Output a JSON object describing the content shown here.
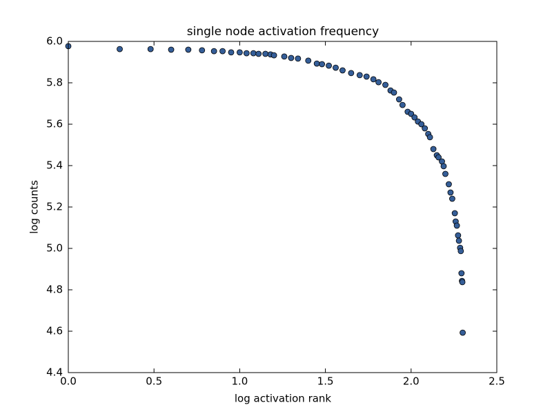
{
  "chart_data": {
    "type": "scatter",
    "title": "single node activation frequency",
    "xlabel": "log activation rank",
    "ylabel": "log counts",
    "color": "#355e98",
    "xlim": [
      0,
      2.5
    ],
    "ylim": [
      4.4,
      6.0
    ],
    "xticks": [
      {
        "value": 0,
        "label": "0.0"
      },
      0.5,
      {
        "value": 1,
        "label": "1.0"
      },
      1.5,
      {
        "value": 2,
        "label": "2.0"
      },
      2.5
    ],
    "yticks": [
      4.4,
      4.6,
      4.8,
      {
        "value": 5,
        "label": "5.0"
      },
      5.2,
      5.4,
      5.6,
      5.8,
      {
        "value": 6,
        "label": "6.0"
      }
    ],
    "x": [
      0,
      0.3,
      0.48,
      0.6,
      0.7,
      0.78,
      0.85,
      0.9,
      0.95,
      1.0,
      1.04,
      1.08,
      1.11,
      1.15,
      1.18,
      1.2,
      1.26,
      1.3,
      1.34,
      1.4,
      1.45,
      1.48,
      1.52,
      1.56,
      1.6,
      1.65,
      1.7,
      1.74,
      1.78,
      1.81,
      1.85,
      1.88,
      1.9,
      1.93,
      1.95,
      1.98,
      2.0,
      2.02,
      2.04,
      2.06,
      2.08,
      2.1,
      2.11,
      2.13,
      2.15,
      2.16,
      2.18,
      2.19,
      2.2,
      2.22,
      2.23,
      2.24,
      2.255,
      2.26,
      2.267,
      2.274,
      2.279,
      2.286,
      2.29,
      2.294,
      2.297,
      2.299,
      2.301
    ],
    "values": [
      5.977,
      5.963,
      5.963,
      5.96,
      5.96,
      5.957,
      5.953,
      5.953,
      5.947,
      5.947,
      5.943,
      5.943,
      5.94,
      5.94,
      5.937,
      5.933,
      5.927,
      5.92,
      5.917,
      5.907,
      5.893,
      5.89,
      5.883,
      5.873,
      5.86,
      5.847,
      5.837,
      5.83,
      5.817,
      5.803,
      5.79,
      5.763,
      5.753,
      5.72,
      5.693,
      5.66,
      5.65,
      5.633,
      5.613,
      5.6,
      5.58,
      5.553,
      5.537,
      5.48,
      5.45,
      5.44,
      5.42,
      5.397,
      5.36,
      5.31,
      5.27,
      5.24,
      5.17,
      5.13,
      5.11,
      5.063,
      5.037,
      5.003,
      4.987,
      4.88,
      4.843,
      4.837,
      4.593
    ]
  }
}
